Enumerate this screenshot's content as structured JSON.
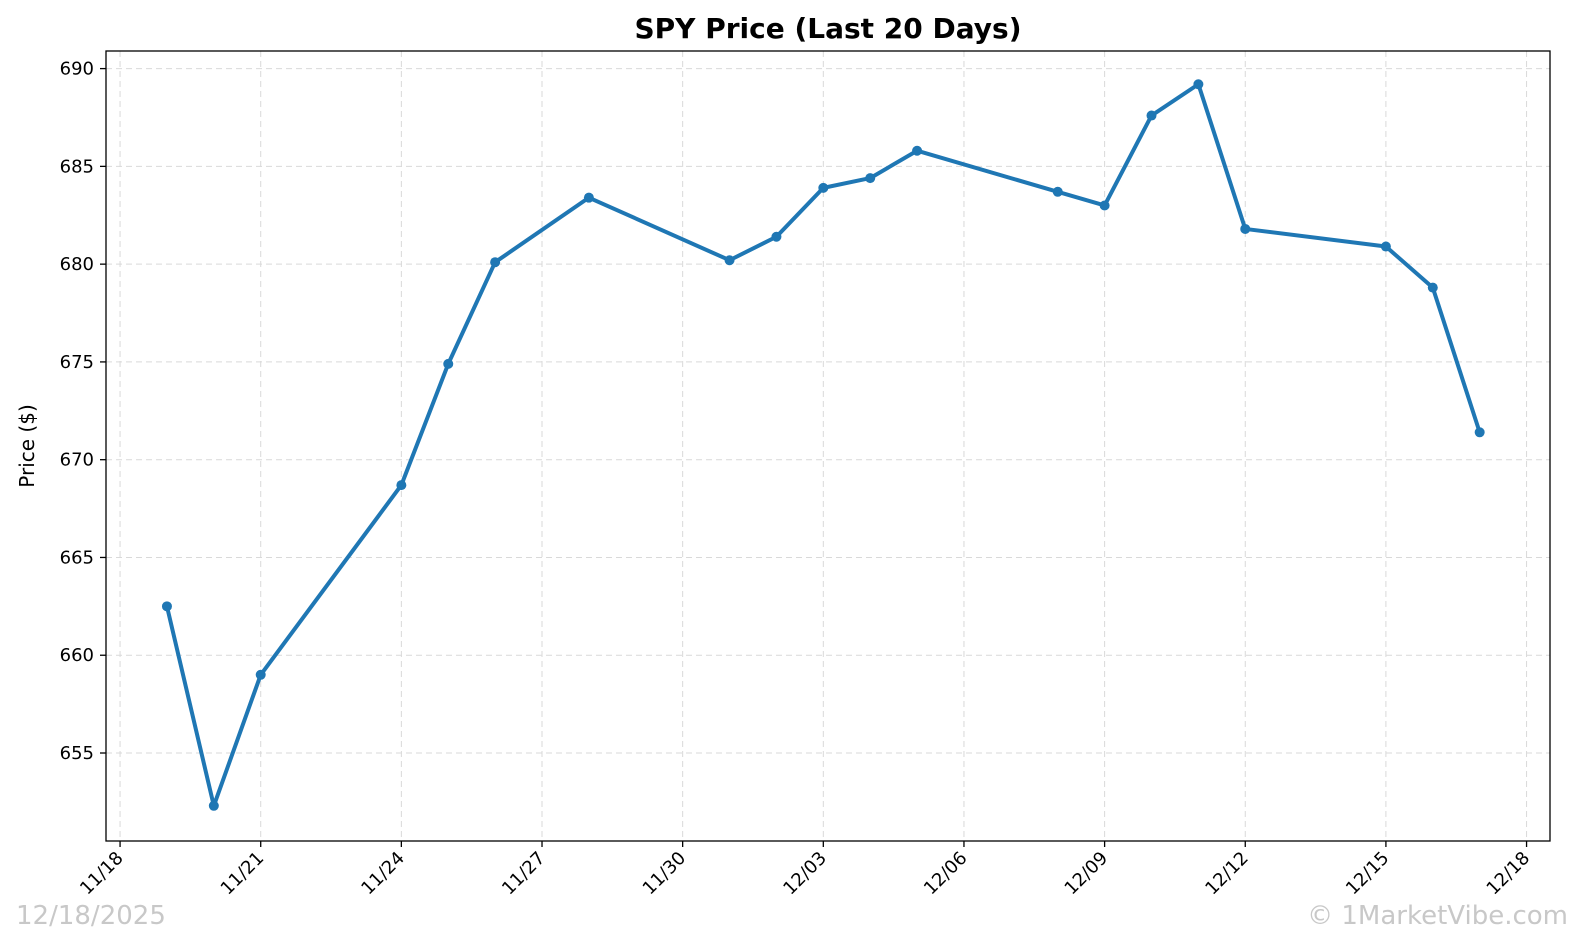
{
  "chart_data": {
    "type": "line",
    "title": "SPY Price (Last 20 Days)",
    "xlabel": "",
    "ylabel": "Price ($)",
    "ylim": [
      650.5,
      690.9
    ],
    "xlim": [
      "2025-11-17T16:48",
      "2025-12-18T12:00"
    ],
    "yticks": [
      655,
      660,
      665,
      670,
      675,
      680,
      685,
      690
    ],
    "xticks": [
      {
        "date": "2025-11-18",
        "label": "11/18"
      },
      {
        "date": "2025-11-21",
        "label": "11/21"
      },
      {
        "date": "2025-11-24",
        "label": "11/24"
      },
      {
        "date": "2025-11-27",
        "label": "11/27"
      },
      {
        "date": "2025-11-30",
        "label": "11/30"
      },
      {
        "date": "2025-12-03",
        "label": "12/03"
      },
      {
        "date": "2025-12-06",
        "label": "12/06"
      },
      {
        "date": "2025-12-09",
        "label": "12/09"
      },
      {
        "date": "2025-12-12",
        "label": "12/12"
      },
      {
        "date": "2025-12-15",
        "label": "12/15"
      },
      {
        "date": "2025-12-18",
        "label": "12/18"
      }
    ],
    "grid": true,
    "series": [
      {
        "color": "#1f77b4",
        "points": [
          {
            "x": "2025-11-19",
            "y": 662.5
          },
          {
            "x": "2025-11-20",
            "y": 652.3
          },
          {
            "x": "2025-11-21",
            "y": 659.0
          },
          {
            "x": "2025-11-24",
            "y": 668.7
          },
          {
            "x": "2025-11-25",
            "y": 674.9
          },
          {
            "x": "2025-11-26",
            "y": 680.1
          },
          {
            "x": "2025-11-28",
            "y": 683.4
          },
          {
            "x": "2025-12-01",
            "y": 680.2
          },
          {
            "x": "2025-12-02",
            "y": 681.4
          },
          {
            "x": "2025-12-03",
            "y": 683.9
          },
          {
            "x": "2025-12-04",
            "y": 684.4
          },
          {
            "x": "2025-12-05",
            "y": 685.8
          },
          {
            "x": "2025-12-08",
            "y": 683.7
          },
          {
            "x": "2025-12-09",
            "y": 683.0
          },
          {
            "x": "2025-12-10",
            "y": 687.6
          },
          {
            "x": "2025-12-11",
            "y": 689.2
          },
          {
            "x": "2025-12-12",
            "y": 681.8
          },
          {
            "x": "2025-12-15",
            "y": 680.9
          },
          {
            "x": "2025-12-16",
            "y": 678.8
          },
          {
            "x": "2025-12-17",
            "y": 671.4
          }
        ]
      }
    ]
  },
  "footer": {
    "date": "12/18/2025",
    "copyright": "© 1MarketVibe.com"
  }
}
